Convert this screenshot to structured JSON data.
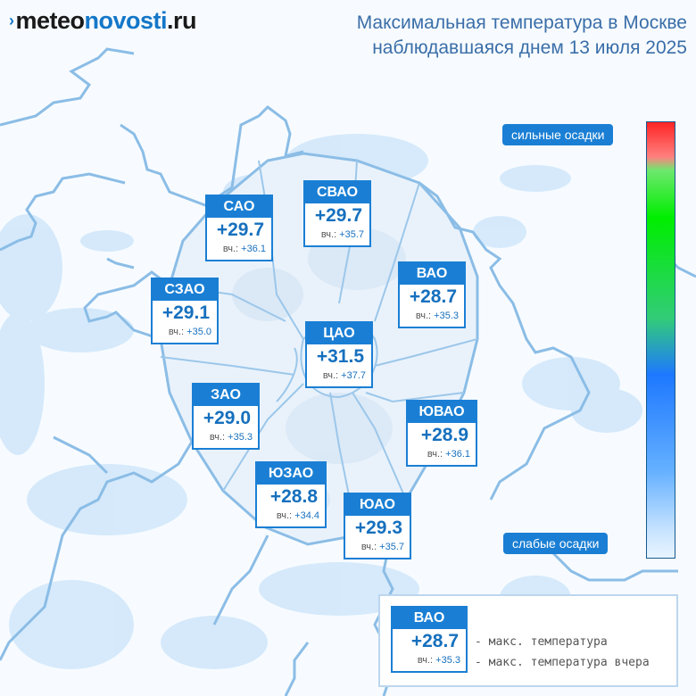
{
  "header": {
    "logo_mark": "›",
    "logo_part1": "meteo",
    "logo_part2": "novosti",
    "logo_part3": ".ru",
    "title_line1": "Максимальная температура в Москве",
    "title_line2": "наблюдавшаяся днем 13 июля 2025"
  },
  "districts": [
    {
      "name": "САО",
      "temp": "+29.7",
      "prev_label": "вч.:",
      "prev": "+36.1"
    },
    {
      "name": "СВАО",
      "temp": "+29.7",
      "prev_label": "вч.:",
      "prev": "+35.7"
    },
    {
      "name": "ВАО",
      "temp": "+28.7",
      "prev_label": "вч.:",
      "prev": "+35.3"
    },
    {
      "name": "СЗАО",
      "temp": "+29.1",
      "prev_label": "вч.:",
      "prev": "+35.0"
    },
    {
      "name": "ЦАО",
      "temp": "+31.5",
      "prev_label": "вч.:",
      "prev": "+37.7"
    },
    {
      "name": "ЗАО",
      "temp": "+29.0",
      "prev_label": "вч.:",
      "prev": "+35.3"
    },
    {
      "name": "ЮВАО",
      "temp": "+28.9",
      "prev_label": "вч.:",
      "prev": "+36.1"
    },
    {
      "name": "ЮЗАО",
      "temp": "+28.8",
      "prev_label": "вч.:",
      "prev": "+34.4"
    },
    {
      "name": "ЮАО",
      "temp": "+29.3",
      "prev_label": "вч.:",
      "prev": "+35.7"
    }
  ],
  "scale": {
    "top_label": "сильные осадки",
    "bottom_label": "слабые осадки"
  },
  "legend": {
    "name": "ВАО",
    "temp": "+28.7",
    "prev_label": "вч.:",
    "prev": "+35.3",
    "note_max": "- макс. температура",
    "note_prev": "- макс. температура вчера"
  }
}
